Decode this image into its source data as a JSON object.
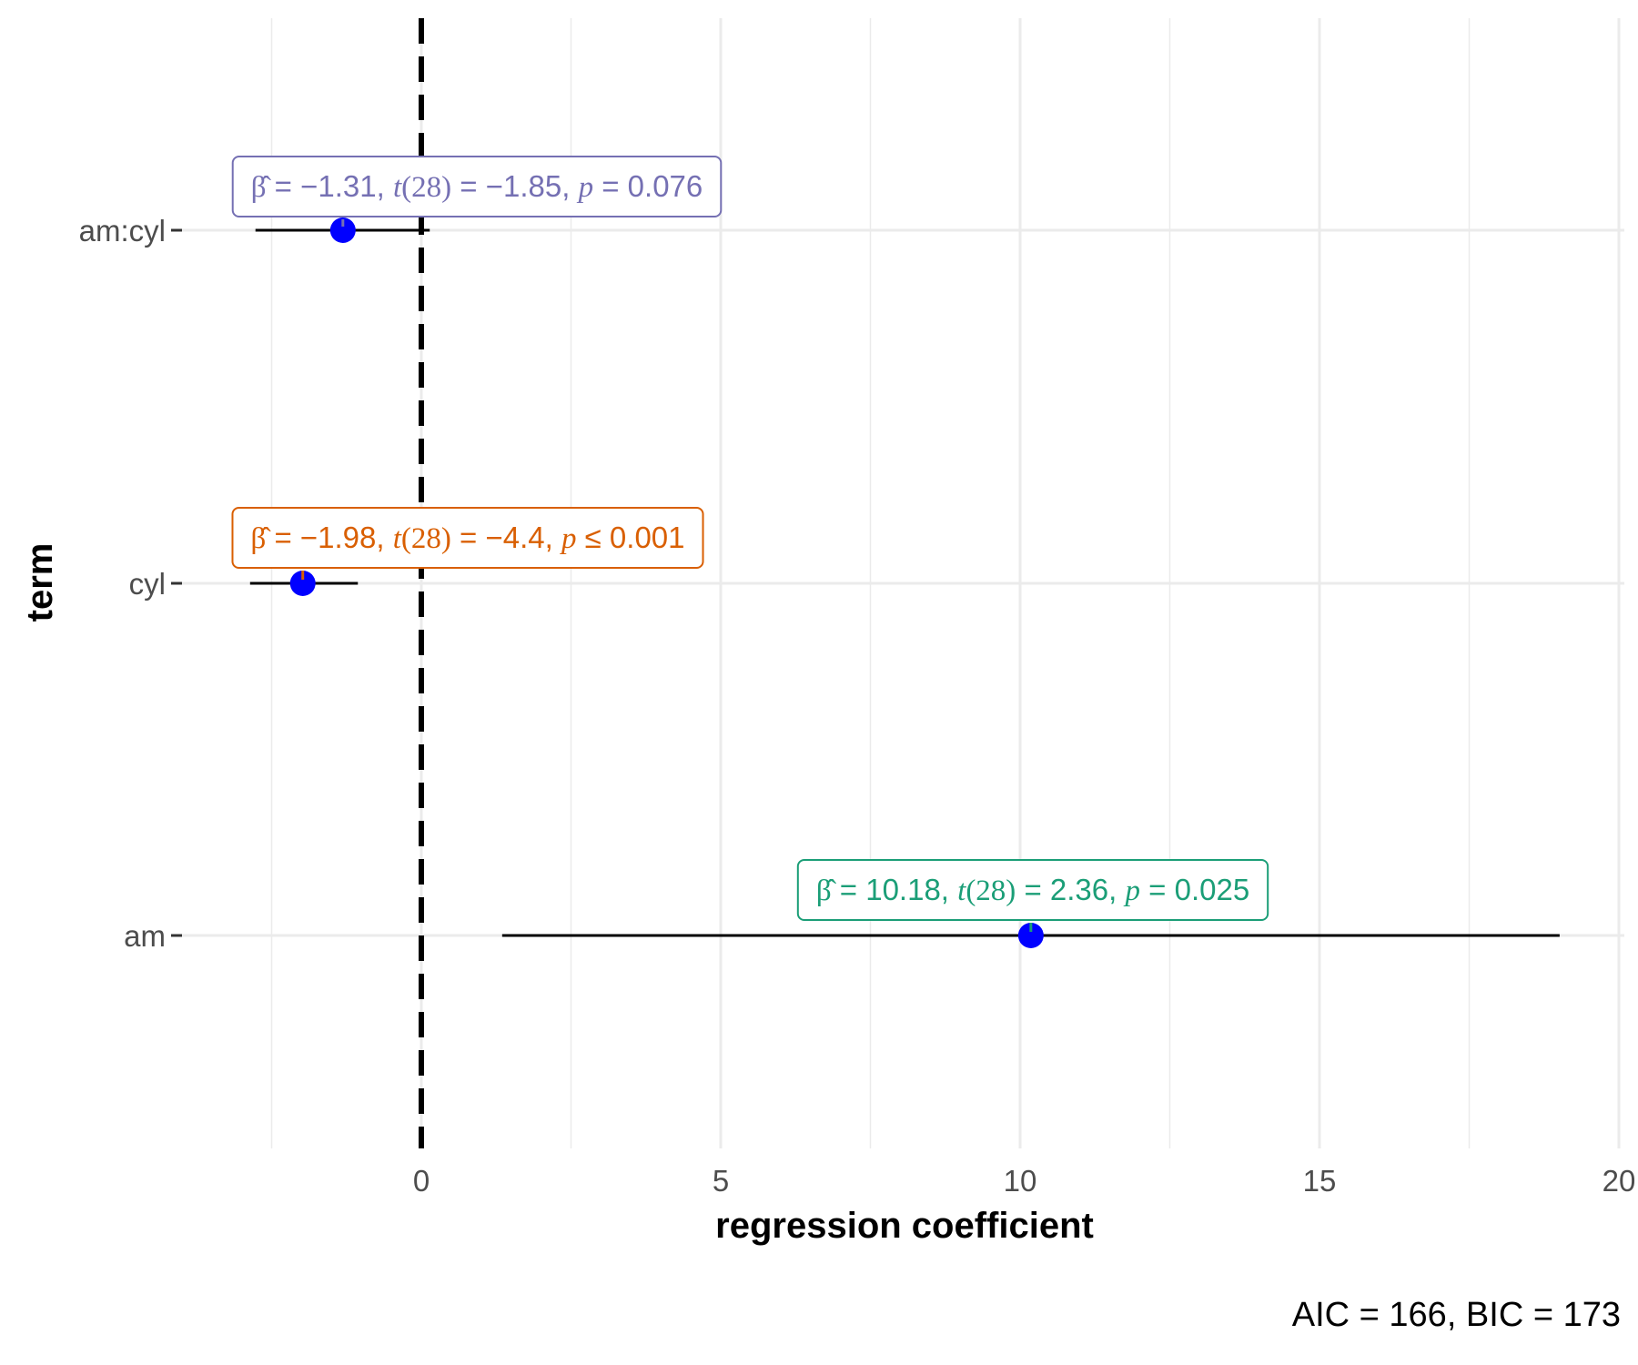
{
  "chart_data": {
    "type": "scatter",
    "subtype": "coefficient-plot",
    "title": "",
    "xlabel": "regression coefficient",
    "ylabel": "term",
    "caption": "AIC = 166, BIC = 173",
    "xlim": [
      -4.5,
      20
    ],
    "x_ticks": [
      0,
      5,
      10,
      15,
      20
    ],
    "x_tick_labels": [
      "0",
      "5",
      "10",
      "15",
      "20"
    ],
    "reference_line": {
      "x": 0,
      "style": "dashed",
      "color": "#000000"
    },
    "grid": true,
    "point_color": "#0000ff",
    "terms": [
      {
        "name": "am",
        "estimate": 10.18,
        "conf_low": 1.35,
        "conf_high": 19.01,
        "t": "2.36",
        "df": "28",
        "p_op": "=",
        "p": "0.025",
        "label_color": "#1b9e77",
        "beta_str": "10.18"
      },
      {
        "name": "cyl",
        "estimate": -1.98,
        "conf_low": -2.86,
        "conf_high": -1.06,
        "t": "−4.4",
        "df": "28",
        "p_op": "≤",
        "p": "0.001",
        "label_color": "#d95f02",
        "beta_str": "−1.98"
      },
      {
        "name": "am:cyl",
        "estimate": -1.31,
        "conf_low": -2.77,
        "conf_high": 0.14,
        "t": "−1.85",
        "df": "28",
        "p_op": "=",
        "p": "0.076",
        "label_color": "#7570b3",
        "beta_str": "−1.31"
      }
    ]
  }
}
